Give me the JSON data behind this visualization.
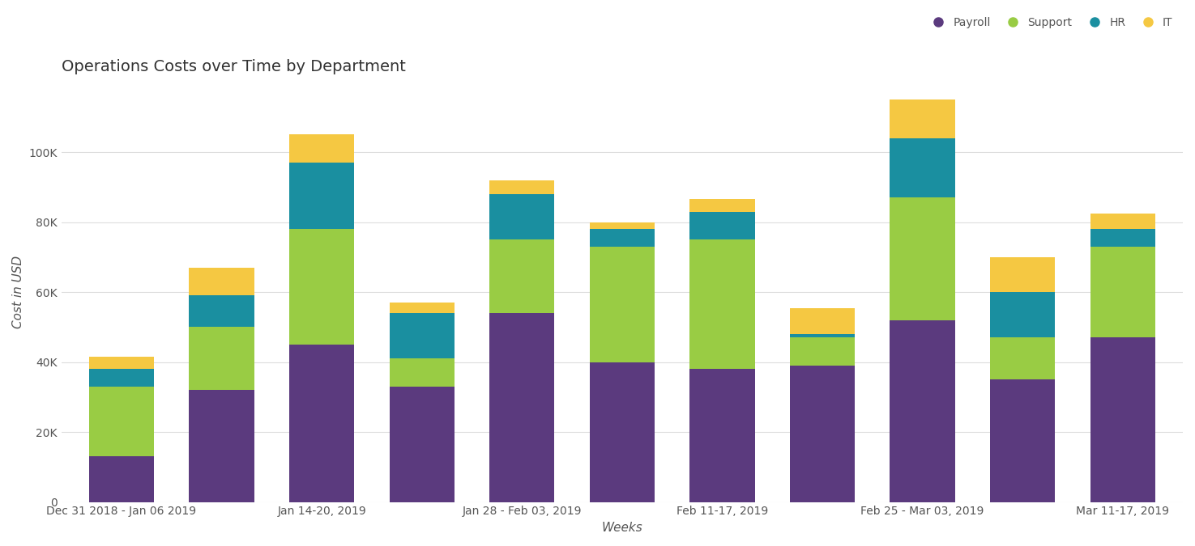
{
  "title": "Operations Costs over Time by Department",
  "xlabel": "Weeks",
  "ylabel": "Cost in USD",
  "categories": [
    "Dec 31 2018 - Jan 06 2019",
    "",
    "Jan 14-20, 2019",
    "",
    "Jan 28 - Feb 03, 2019",
    "",
    "Feb 11-17, 2019",
    "",
    "Feb 25 - Mar 03, 2019",
    "",
    "Mar 11-17, 2019"
  ],
  "payroll": [
    13000,
    32000,
    45000,
    33000,
    54000,
    40000,
    38000,
    39000,
    52000,
    35000,
    47000
  ],
  "support": [
    20000,
    18000,
    33000,
    8000,
    21000,
    33000,
    37000,
    8000,
    35000,
    12000,
    26000
  ],
  "hr": [
    5000,
    9000,
    19000,
    13000,
    13000,
    5000,
    8000,
    1000,
    17000,
    13000,
    5000
  ],
  "it": [
    3500,
    8000,
    8000,
    3000,
    4000,
    2000,
    3500,
    7500,
    11000,
    10000,
    4500
  ],
  "colors": {
    "payroll": "#5b3a7e",
    "support": "#99cc44",
    "hr": "#1a8fa0",
    "it": "#f5c842"
  },
  "ylim": [
    0,
    120000
  ],
  "yticks": [
    0,
    20000,
    40000,
    60000,
    80000,
    100000
  ],
  "ytick_labels": [
    "0",
    "20K",
    "40K",
    "60K",
    "80K",
    "100K"
  ],
  "background_color": "#ffffff",
  "title_fontsize": 14,
  "axis_label_fontsize": 11,
  "tick_fontsize": 10,
  "legend_fontsize": 10
}
